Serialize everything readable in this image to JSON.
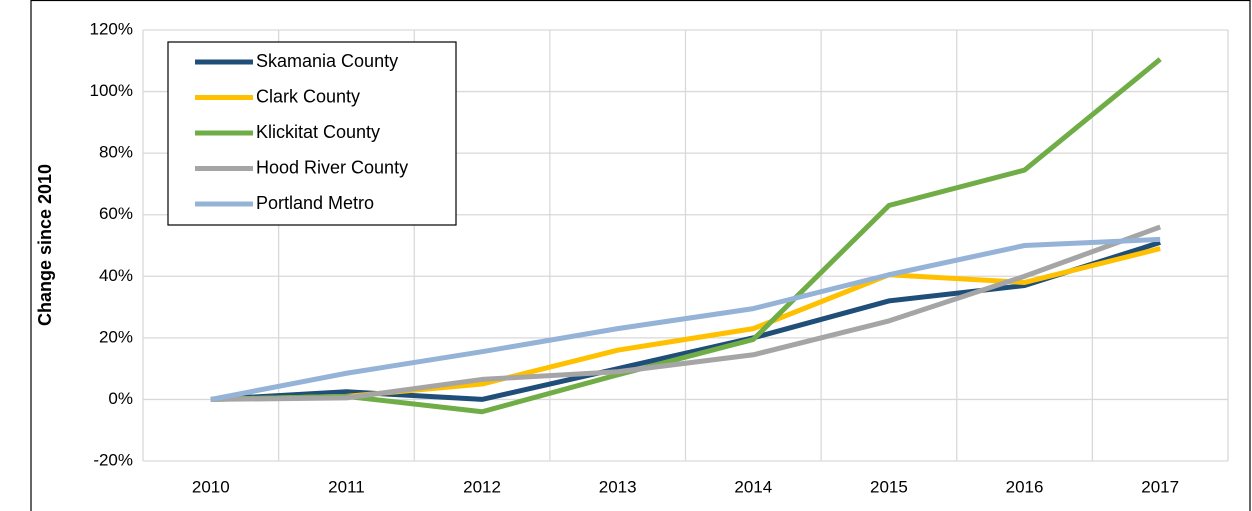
{
  "chart_data": {
    "type": "line",
    "y_label": "Change since 2010",
    "categories": [
      "2010",
      "2011",
      "2012",
      "2013",
      "2014",
      "2015",
      "2016",
      "2017"
    ],
    "series": [
      {
        "name": "Skamania County",
        "color": "#1f4e79",
        "values": [
          0,
          2.5,
          0,
          10,
          20,
          32,
          37,
          51
        ]
      },
      {
        "name": "Clark County",
        "color": "#ffc000",
        "values": [
          0,
          1,
          5,
          16,
          23,
          40.5,
          38,
          49
        ]
      },
      {
        "name": "Klickitat County",
        "color": "#70ad47",
        "values": [
          0,
          1,
          -4,
          8,
          19.5,
          63,
          74.5,
          110.5
        ]
      },
      {
        "name": "Hood River County",
        "color": "#a5a5a5",
        "values": [
          0,
          0.5,
          6.5,
          9,
          14.5,
          25.5,
          40,
          56
        ]
      },
      {
        "name": "Portland Metro",
        "color": "#95b3d7",
        "values": [
          0,
          8.5,
          15.5,
          23,
          29.5,
          40.5,
          50,
          52
        ]
      }
    ],
    "ylim": [
      -20,
      120
    ],
    "yticks": [
      {
        "value": -20,
        "label": "-20%"
      },
      {
        "value": 0,
        "label": "0%"
      },
      {
        "value": 20,
        "label": "20%"
      },
      {
        "value": 40,
        "label": "40%"
      },
      {
        "value": 60,
        "label": "60%"
      },
      {
        "value": 80,
        "label": "80%"
      },
      {
        "value": 100,
        "label": "100%"
      },
      {
        "value": 120,
        "label": "120%"
      }
    ],
    "grid": true,
    "legend": "upper left"
  }
}
